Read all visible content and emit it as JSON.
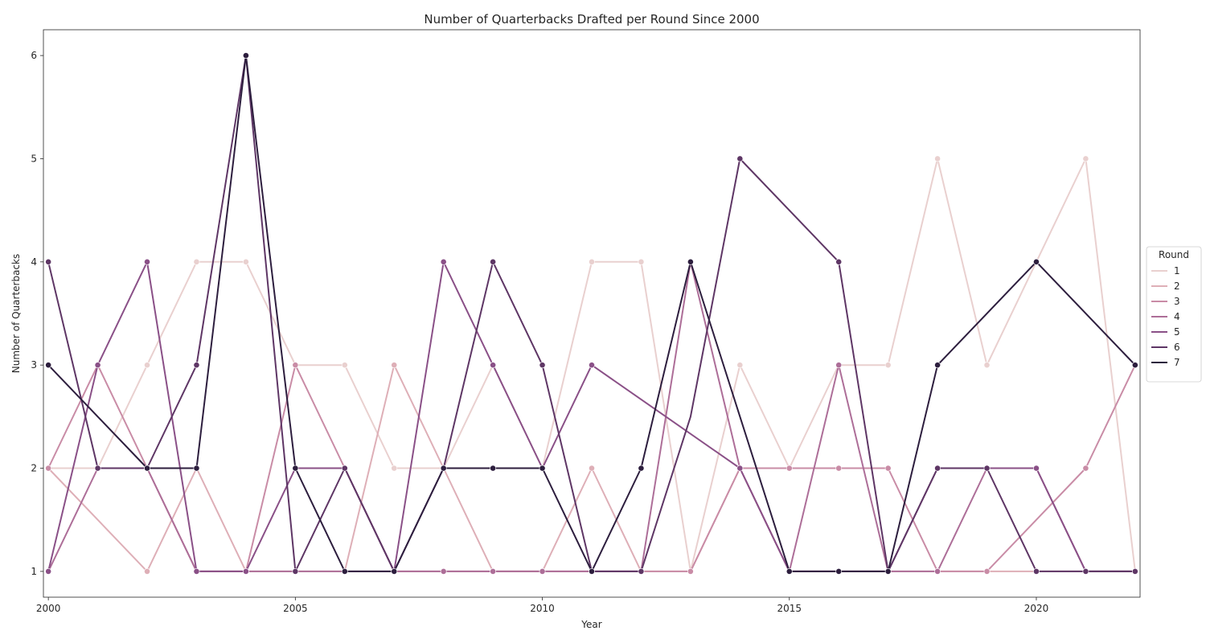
{
  "chart_data": {
    "type": "line",
    "title": "Number of Quarterbacks Drafted per Round Since 2000",
    "xlabel": "Year",
    "ylabel": "Number of Quarterbacks",
    "xlim": [
      1999.9,
      2022.1
    ],
    "ylim": [
      0.75,
      6.25
    ],
    "x_ticks": [
      2000,
      2005,
      2010,
      2015,
      2020
    ],
    "y_ticks": [
      1,
      2,
      3,
      4,
      5,
      6
    ],
    "legend_title": "Round",
    "legend_position": "right",
    "series": [
      {
        "name": "1",
        "color": "#e9d0cf",
        "x": [
          2000,
          2001,
          2002,
          2003,
          2004,
          2005,
          2006,
          2007,
          2008,
          2009,
          2010,
          2011,
          2012,
          2013,
          2014,
          2015,
          2016,
          2017,
          2018,
          2019,
          2020,
          2021,
          2022
        ],
        "values": [
          2,
          2,
          3,
          4,
          4,
          3,
          3,
          2,
          2,
          3,
          2,
          4,
          4,
          1,
          3,
          2,
          3,
          3,
          5,
          3,
          4,
          5,
          1
        ]
      },
      {
        "name": "2",
        "color": "#deafb7",
        "x": [
          2000,
          2002,
          2003,
          2004,
          2005,
          2006,
          2007,
          2008,
          2009,
          2010,
          2011,
          2012,
          2013,
          2014,
          2015,
          2016,
          2017,
          2018,
          2019,
          2020,
          2021,
          2022
        ],
        "values": [
          2,
          1,
          2,
          1,
          1,
          1,
          3,
          2,
          1,
          1,
          2,
          1,
          1,
          2,
          1,
          1,
          1,
          1,
          1,
          1,
          1,
          1
        ]
      },
      {
        "name": "3",
        "color": "#c98ca6",
        "x": [
          2000,
          2001,
          2002,
          2003,
          2004,
          2005,
          2006,
          2007,
          2008,
          2009,
          2010,
          2011,
          2012,
          2013,
          2014,
          2015,
          2016,
          2017,
          2018,
          2019,
          2020,
          2021,
          2022
        ],
        "values": [
          2,
          3,
          2,
          1,
          1,
          3,
          2,
          1,
          1,
          1,
          1,
          1,
          1,
          1,
          2,
          2,
          2,
          2,
          1,
          1,
          1.5,
          2,
          3
        ]
      },
      {
        "name": "4",
        "color": "#ad6e98",
        "x": [
          2000,
          2001,
          2002,
          2003,
          2004,
          2005,
          2006,
          2007,
          2008,
          2009,
          2010,
          2011,
          2012,
          2013,
          2014,
          2015,
          2016,
          2017,
          2018,
          2019,
          2020,
          2021,
          2022
        ],
        "values": [
          1,
          2,
          2,
          1,
          1,
          1,
          1,
          1,
          1,
          1,
          1,
          1,
          1,
          4,
          2,
          1,
          3,
          1,
          1,
          2,
          2,
          1,
          1
        ]
      },
      {
        "name": "5",
        "color": "#8a5087",
        "x": [
          2000,
          2001,
          2002,
          2003,
          2004,
          2005,
          2006,
          2007,
          2008,
          2009,
          2010,
          2011,
          2014,
          2015,
          2016,
          2017,
          2018,
          2019,
          2020,
          2021,
          2022
        ],
        "values": [
          1,
          3,
          4,
          1,
          1,
          2,
          2,
          1,
          4,
          3,
          2,
          3,
          2,
          1,
          1,
          1,
          2,
          2,
          2,
          1,
          1
        ]
      },
      {
        "name": "6",
        "color": "#5e3665",
        "x": [
          2000,
          2001,
          2002,
          2003,
          2004,
          2005,
          2006,
          2007,
          2008,
          2009,
          2010,
          2011,
          2012,
          2013,
          2014,
          2016,
          2017,
          2018,
          2019,
          2020,
          2021,
          2022
        ],
        "values": [
          4,
          2,
          2,
          3,
          6,
          1,
          2,
          1,
          2,
          4,
          3,
          1,
          1,
          2.5,
          5,
          4,
          1,
          2,
          2,
          1,
          1,
          1
        ]
      },
      {
        "name": "7",
        "color": "#2d1e3e",
        "x": [
          2000,
          2001,
          2002,
          2003,
          2004,
          2005,
          2006,
          2007,
          2008,
          2009,
          2010,
          2011,
          2012,
          2013,
          2015,
          2016,
          2017,
          2018,
          2020,
          2022
        ],
        "values": [
          3,
          2.5,
          2,
          2,
          6,
          2,
          1,
          1,
          2,
          2,
          2,
          1,
          2,
          4,
          1,
          1,
          1,
          3,
          4,
          3
        ]
      }
    ]
  }
}
